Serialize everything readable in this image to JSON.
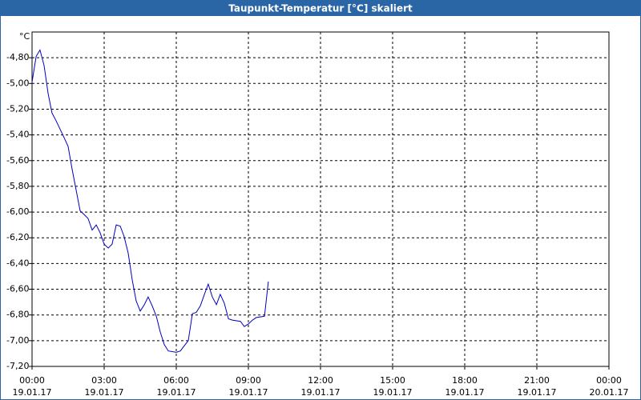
{
  "chart_data": {
    "type": "line",
    "title": "Taupunkt-Temperatur [°C] skaliert",
    "y_unit": "°C",
    "x": [
      0,
      0.17,
      0.33,
      0.5,
      0.67,
      0.83,
      1,
      1.33,
      1.5,
      1.67,
      2,
      2.17,
      2.33,
      2.5,
      2.67,
      2.83,
      3,
      3.17,
      3.33,
      3.5,
      3.67,
      3.83,
      4,
      4.17,
      4.33,
      4.5,
      4.67,
      4.83,
      5,
      5.17,
      5.33,
      5.5,
      5.67,
      6,
      6.17,
      6.33,
      6.5,
      6.67,
      6.83,
      7,
      7.17,
      7.33,
      7.5,
      7.67,
      7.83,
      8,
      8.17,
      8.33,
      8.67,
      8.83,
      9,
      9.17,
      9.33,
      9.67,
      9.83
    ],
    "series": [
      {
        "name": "Taupunkt-Temperatur",
        "color": "#0000c0",
        "values": [
          -4.99,
          -4.79,
          -4.74,
          -4.86,
          -5.08,
          -5.23,
          -5.29,
          -5.42,
          -5.49,
          -5.67,
          -5.99,
          -6.02,
          -6.05,
          -6.14,
          -6.1,
          -6.16,
          -6.25,
          -6.28,
          -6.25,
          -6.1,
          -6.11,
          -6.19,
          -6.32,
          -6.53,
          -6.69,
          -6.77,
          -6.72,
          -6.66,
          -6.73,
          -6.81,
          -6.93,
          -7.03,
          -7.08,
          -7.09,
          -7.08,
          -7.04,
          -7.0,
          -6.79,
          -6.78,
          -6.73,
          -6.64,
          -6.56,
          -6.66,
          -6.72,
          -6.64,
          -6.71,
          -6.83,
          -6.84,
          -6.85,
          -6.89,
          -6.87,
          -6.84,
          -6.82,
          -6.81,
          -6.54
        ]
      }
    ],
    "xlim": [
      0,
      24
    ],
    "xticks": [
      {
        "value": 0,
        "label": "00:00",
        "date": "19.01.17"
      },
      {
        "value": 3,
        "label": "03:00",
        "date": "19.01.17"
      },
      {
        "value": 6,
        "label": "06:00",
        "date": "19.01.17"
      },
      {
        "value": 9,
        "label": "09:00",
        "date": "19.01.17"
      },
      {
        "value": 12,
        "label": "12:00",
        "date": "19.01.17"
      },
      {
        "value": 15,
        "label": "15:00",
        "date": "19.01.17"
      },
      {
        "value": 18,
        "label": "18:00",
        "date": "19.01.17"
      },
      {
        "value": 21,
        "label": "21:00",
        "date": "19.01.17"
      },
      {
        "value": 24,
        "label": "00:00",
        "date": "20.01.17"
      }
    ],
    "ylim": [
      -7.2,
      -4.6
    ],
    "yticks": [
      {
        "value": -4.8,
        "label": "-4,80"
      },
      {
        "value": -5.0,
        "label": "-5,00"
      },
      {
        "value": -5.2,
        "label": "-5,20"
      },
      {
        "value": -5.4,
        "label": "-5,40"
      },
      {
        "value": -5.6,
        "label": "-5,60"
      },
      {
        "value": -5.8,
        "label": "-5,80"
      },
      {
        "value": -6.0,
        "label": "-6,00"
      },
      {
        "value": -6.2,
        "label": "-6,20"
      },
      {
        "value": -6.4,
        "label": "-6,40"
      },
      {
        "value": -6.6,
        "label": "-6,60"
      },
      {
        "value": -6.8,
        "label": "-6,80"
      },
      {
        "value": -7.0,
        "label": "-7,00"
      },
      {
        "value": -7.2,
        "label": "-7,20"
      }
    ],
    "grid": true
  }
}
